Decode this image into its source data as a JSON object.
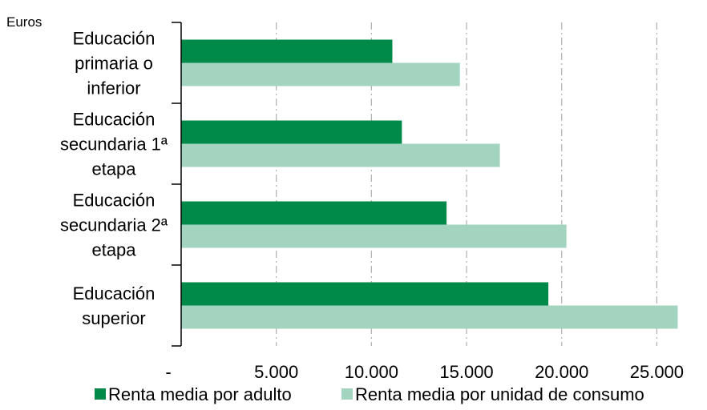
{
  "chart_data": {
    "type": "bar",
    "orientation": "horizontal",
    "unit_label": "Euros",
    "categories": [
      [
        "Educación",
        "primaria o",
        "inferior"
      ],
      [
        "Educación",
        "secundaria 1ª",
        "etapa"
      ],
      [
        "Educación",
        "secundaria 2ª",
        "etapa"
      ],
      [
        "Educación",
        "superior"
      ]
    ],
    "series": [
      {
        "name": "Renta media por adulto",
        "color": "#008a4a",
        "values": [
          11100,
          11600,
          13950,
          19300
        ]
      },
      {
        "name": "Renta media por unidad de consumo",
        "color": "#a2d4c0",
        "values": [
          14650,
          16750,
          20250,
          26100
        ]
      }
    ],
    "x_ticks": [
      0,
      5000,
      10000,
      15000,
      20000,
      25000
    ],
    "x_tick_labels": [
      "-",
      "5.000",
      "10.000",
      "15.000",
      "20.000",
      "25.000"
    ],
    "xlim": [
      0,
      26500
    ],
    "grid": "vertical dash-dot",
    "legend_position": "bottom"
  }
}
